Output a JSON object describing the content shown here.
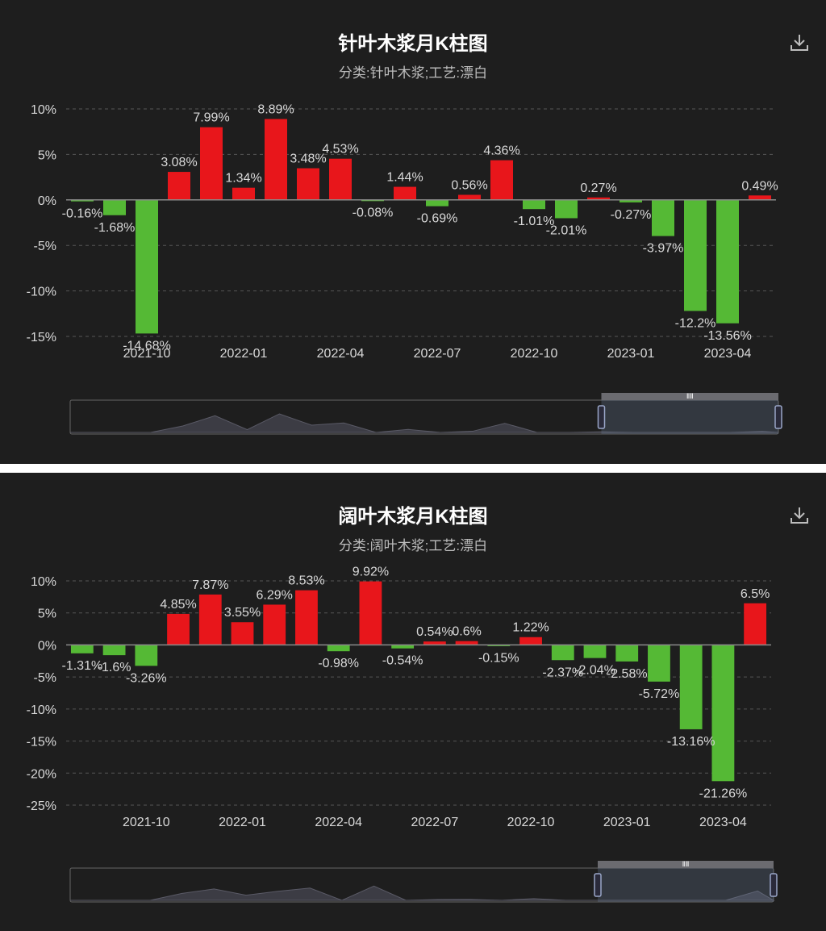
{
  "colors": {
    "background": "#1e1e1e",
    "positive": "#e8161b",
    "negative": "#55b935",
    "text": "#d9d9d9",
    "grid": "#555555"
  },
  "icons": {
    "download": "download-icon",
    "slider_grip": "grip-icon"
  },
  "chart_data": [
    {
      "type": "bar",
      "title": "针叶木浆月K柱图",
      "subtitle": "分类:针叶木浆;工艺:漂白",
      "categories": [
        "2021-08",
        "2021-09",
        "2021-10",
        "2021-11",
        "2021-12",
        "2022-01",
        "2022-02",
        "2022-03",
        "2022-04",
        "2022-05",
        "2022-06",
        "2022-07",
        "2022-08",
        "2022-09",
        "2022-10",
        "2022-11",
        "2022-12",
        "2023-01",
        "2023-02",
        "2023-03",
        "2023-04",
        "2023-05"
      ],
      "values": [
        -0.16,
        -1.68,
        -14.68,
        3.08,
        7.99,
        1.34,
        8.89,
        3.48,
        4.53,
        -0.08,
        1.44,
        -0.69,
        0.56,
        4.36,
        -1.01,
        -2.01,
        0.27,
        -0.27,
        -3.97,
        -12.2,
        -13.56,
        0.49
      ],
      "data_labels": [
        "-0.16%",
        "-1.68%",
        "-14.68%",
        "3.08%",
        "7.99%",
        "1.34%",
        "8.89%",
        "3.48%",
        "4.53%",
        "-0.08%",
        "1.44%",
        "-0.69%",
        "0.56%",
        "4.36%",
        "-1.01%",
        "-2.01%",
        "0.27%",
        "-0.27%",
        "-3.97%",
        "-12.2%",
        "-13.56%",
        "0.49%"
      ],
      "ylim": [
        -15,
        10
      ],
      "yticks": [
        10,
        5,
        0,
        -5,
        -10,
        -15
      ],
      "ytick_labels": [
        "10%",
        "5%",
        "0%",
        "-5%",
        "-10%",
        "-15%"
      ],
      "xtick_labels": [
        "2021-10",
        "2022-01",
        "2022-04",
        "2022-07",
        "2022-10",
        "2023-01",
        "2023-04"
      ],
      "xtick_index": [
        2,
        5,
        8,
        11,
        14,
        17,
        20
      ],
      "grid": true,
      "legend": "none",
      "data_zoom": {
        "start": 0.75,
        "end": 1.0
      }
    },
    {
      "type": "bar",
      "title": "阔叶木浆月K柱图",
      "subtitle": "分类:阔叶木浆;工艺:漂白",
      "categories": [
        "2021-08",
        "2021-09",
        "2021-10",
        "2021-11",
        "2021-12",
        "2022-01",
        "2022-02",
        "2022-03",
        "2022-04",
        "2022-05",
        "2022-06",
        "2022-07",
        "2022-08",
        "2022-09",
        "2022-10",
        "2022-11",
        "2022-12",
        "2023-01",
        "2023-02",
        "2023-03",
        "2023-04",
        "2023-05"
      ],
      "values": [
        -1.31,
        -1.6,
        -3.26,
        4.85,
        7.87,
        3.55,
        6.29,
        8.53,
        -0.98,
        9.92,
        -0.54,
        0.54,
        0.6,
        -0.15,
        1.22,
        -2.37,
        -2.04,
        -2.58,
        -5.72,
        -13.16,
        -21.26,
        6.5
      ],
      "data_labels": [
        "-1.31%",
        "-1.6%",
        "-3.26%",
        "4.85%",
        "7.87%",
        "3.55%",
        "6.29%",
        "8.53%",
        "-0.98%",
        "9.92%",
        "-0.54%",
        "0.54%",
        "0.6%",
        "-0.15%",
        "1.22%",
        "-2.37%",
        "-2.04%",
        "-2.58%",
        "-5.72%",
        "-13.16%",
        "-21.26%",
        "6.5%"
      ],
      "ylim": [
        -25,
        10
      ],
      "yticks": [
        10,
        5,
        0,
        -5,
        -10,
        -15,
        -20,
        -25
      ],
      "ytick_labels": [
        "10%",
        "5%",
        "0%",
        "-5%",
        "-10%",
        "-15%",
        "-20%",
        "-25%"
      ],
      "xtick_labels": [
        "2021-10",
        "2022-01",
        "2022-04",
        "2022-07",
        "2022-10",
        "2023-01",
        "2023-04"
      ],
      "xtick_index": [
        2,
        5,
        8,
        11,
        14,
        17,
        20
      ],
      "grid": true,
      "legend": "none",
      "data_zoom": {
        "start": 0.75,
        "end": 1.0
      }
    }
  ]
}
